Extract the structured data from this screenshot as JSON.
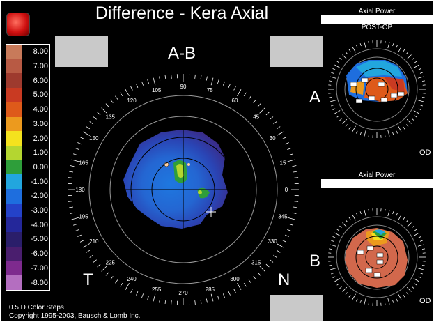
{
  "title": "Difference - Kera Axial",
  "main_map": {
    "meridian_label_top": "A-B",
    "corner_left": "T",
    "corner_right": "N",
    "angle_labels": [
      "0",
      "15",
      "30",
      "45",
      "60",
      "75",
      "90",
      "105",
      "120",
      "135",
      "150",
      "165",
      "180",
      "195",
      "210",
      "225",
      "240",
      "255",
      "270",
      "285",
      "300",
      "315",
      "330",
      "345"
    ]
  },
  "scale": {
    "items": [
      {
        "label": "8.00",
        "color": "#c87a5a"
      },
      {
        "label": "7.00",
        "color": "#b85a44"
      },
      {
        "label": "6.00",
        "color": "#9e3a2e"
      },
      {
        "label": "5.00",
        "color": "#c93a22"
      },
      {
        "label": "4.00",
        "color": "#de5a1a"
      },
      {
        "label": "3.00",
        "color": "#ec9a1e"
      },
      {
        "label": "2.00",
        "color": "#f4e21e"
      },
      {
        "label": "1.00",
        "color": "#b4d630"
      },
      {
        "label": "0.00",
        "color": "#2e9e3a"
      },
      {
        "label": "-1.00",
        "color": "#22a6de"
      },
      {
        "label": "-2.00",
        "color": "#1e6ede"
      },
      {
        "label": "-3.00",
        "color": "#2442c8"
      },
      {
        "label": "-4.00",
        "color": "#24279a"
      },
      {
        "label": "-5.00",
        "color": "#2a1e6a"
      },
      {
        "label": "-6.00",
        "color": "#4a1e6e"
      },
      {
        "label": "-7.00",
        "color": "#7e2a8e"
      },
      {
        "label": "-8.00",
        "color": "#b46ec0"
      }
    ]
  },
  "footer": {
    "line1": "0.5 D Color Steps",
    "line2": "Copyright 1995-2003, Bausch & Lomb Inc."
  },
  "panel_a": {
    "header": "Axial Power",
    "subheader": "POST-OP",
    "label": "A",
    "eye": "OD"
  },
  "panel_b": {
    "header": "Axial Power",
    "label": "B",
    "eye": "OD"
  }
}
